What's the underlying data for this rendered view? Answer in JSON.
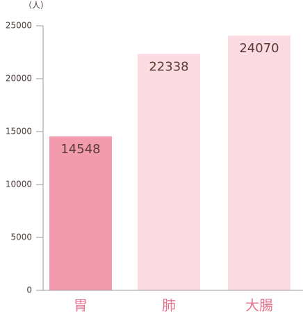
{
  "chart_data": {
    "type": "bar",
    "y_label": "（人）",
    "categories": [
      "胃",
      "肺",
      "大腸"
    ],
    "values": [
      14548,
      22338,
      24070
    ],
    "colors": [
      "#f29aae",
      "#fddbe3",
      "#fddbe3"
    ],
    "ylim": [
      0,
      25000
    ],
    "yticks": [
      0,
      5000,
      10000,
      15000,
      20000,
      25000
    ]
  }
}
